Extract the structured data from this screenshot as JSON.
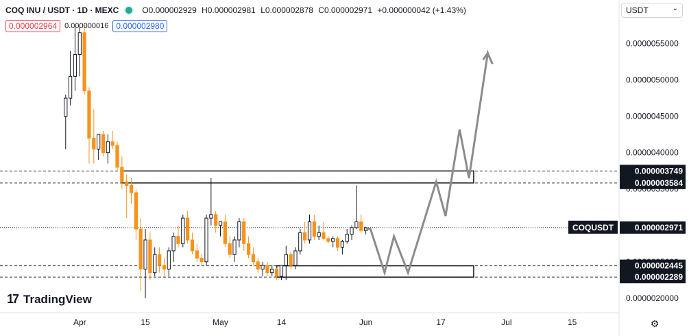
{
  "legend": {
    "title": "COQ INU / USDT · 1D · MEXC",
    "open": "O0.000002929",
    "high": "H0.000002981",
    "low": "L0.000002878",
    "close": "C0.000002971",
    "change": "+0.000000042 (+1.43%)"
  },
  "order": {
    "sell_price": "0.000002964",
    "spread": "0.000000016",
    "buy_price": "0.000002980"
  },
  "currency": "USDT",
  "brand": "TradingView",
  "icons": {
    "status": "green-dot-icon",
    "dropdown": "chevron-down-icon",
    "settings": "gear-icon",
    "logo": "tradingview-logo-icon"
  },
  "colors": {
    "up": "#131722",
    "down": "#f7931a",
    "projection": "#8c8c8c",
    "level_line": "#333333"
  },
  "chart_data": {
    "type": "candlestick",
    "symbol_tag": "COQUSDT",
    "last_price": "0.000002971",
    "ylim": [
      1.8e-06,
      6.1e-06
    ],
    "y_ticks": [
      "0.0000020000",
      "0.0000025000",
      "0.0000030000",
      "0.0000035000",
      "0.0000040000",
      "0.0000045000",
      "0.0000050000",
      "0.0000055000"
    ],
    "y_tick_values": [
      2e-06,
      2.5e-06,
      3e-06,
      3.5e-06,
      4e-06,
      4.5e-06,
      5e-06,
      5.5e-06
    ],
    "x_ticks": [
      {
        "label": "Apr",
        "date": "2024-04-01"
      },
      {
        "label": "15",
        "date": "2024-04-15"
      },
      {
        "label": "May",
        "date": "2024-05-01"
      },
      {
        "label": "14",
        "date": "2024-05-14"
      },
      {
        "label": "Jun",
        "date": "2024-06-01"
      },
      {
        "label": "17",
        "date": "2024-06-17"
      },
      {
        "label": "Jul",
        "date": "2024-07-01"
      },
      {
        "label": "15",
        "date": "2024-07-15"
      }
    ],
    "x_range": [
      "2024-03-15",
      "2024-07-25"
    ],
    "candles": [
      {
        "date": "2024-03-29",
        "o": 4.5e-06,
        "h": 4.8e-06,
        "l": 4.05e-06,
        "c": 4.75e-06
      },
      {
        "date": "2024-03-30",
        "o": 4.75e-06,
        "h": 5.4e-06,
        "l": 4.65e-06,
        "c": 5.05e-06
      },
      {
        "date": "2024-03-31",
        "o": 5.05e-06,
        "h": 5.72e-06,
        "l": 4.85e-06,
        "c": 5.35e-06
      },
      {
        "date": "2024-04-01",
        "o": 5.35e-06,
        "h": 5.73e-06,
        "l": 5.05e-06,
        "c": 5.65e-06
      },
      {
        "date": "2024-04-02",
        "o": 5.65e-06,
        "h": 5.75e-06,
        "l": 4.8e-06,
        "c": 4.85e-06
      },
      {
        "date": "2024-04-03",
        "o": 4.85e-06,
        "h": 4.9e-06,
        "l": 3.85e-06,
        "c": 4.2e-06
      },
      {
        "date": "2024-04-04",
        "o": 4.2e-06,
        "h": 4.6e-06,
        "l": 3.85e-06,
        "c": 4.05e-06
      },
      {
        "date": "2024-04-05",
        "o": 4.05e-06,
        "h": 4.25e-06,
        "l": 3.9e-06,
        "c": 4.25e-06
      },
      {
        "date": "2024-04-06",
        "o": 4.25e-06,
        "h": 4.3e-06,
        "l": 3.95e-06,
        "c": 4e-06
      },
      {
        "date": "2024-04-07",
        "o": 4e-06,
        "h": 4.25e-06,
        "l": 3.85e-06,
        "c": 4.15e-06
      },
      {
        "date": "2024-04-08",
        "o": 4.15e-06,
        "h": 4.3e-06,
        "l": 4.05e-06,
        "c": 4.1e-06
      },
      {
        "date": "2024-04-09",
        "o": 4.1e-06,
        "h": 4.15e-06,
        "l": 3.75e-06,
        "c": 3.8e-06
      },
      {
        "date": "2024-04-10",
        "o": 3.8e-06,
        "h": 3.95e-06,
        "l": 3.5e-06,
        "c": 3.6e-06
      },
      {
        "date": "2024-04-11",
        "o": 3.6e-06,
        "h": 3.7e-06,
        "l": 3.1e-06,
        "c": 3.55e-06
      },
      {
        "date": "2024-04-12",
        "o": 3.55e-06,
        "h": 3.65e-06,
        "l": 3.3e-06,
        "c": 3.45e-06
      },
      {
        "date": "2024-04-13",
        "o": 3.45e-06,
        "h": 3.5e-06,
        "l": 2.8e-06,
        "c": 2.95e-06
      },
      {
        "date": "2024-04-14",
        "o": 2.95e-06,
        "h": 3.1e-06,
        "l": 2.1e-06,
        "c": 2.4e-06
      },
      {
        "date": "2024-04-15",
        "o": 2.4e-06,
        "h": 2.95e-06,
        "l": 2e-06,
        "c": 2.8e-06
      },
      {
        "date": "2024-04-16",
        "o": 2.8e-06,
        "h": 2.9e-06,
        "l": 2.25e-06,
        "c": 2.35e-06
      },
      {
        "date": "2024-04-17",
        "o": 2.35e-06,
        "h": 2.7e-06,
        "l": 2.3e-06,
        "c": 2.6e-06
      },
      {
        "date": "2024-04-18",
        "o": 2.6e-06,
        "h": 2.7e-06,
        "l": 2.35e-06,
        "c": 2.45e-06
      },
      {
        "date": "2024-04-19",
        "o": 2.45e-06,
        "h": 2.55e-06,
        "l": 2.3e-06,
        "c": 2.4e-06
      },
      {
        "date": "2024-04-20",
        "o": 2.4e-06,
        "h": 2.7e-06,
        "l": 2.3e-06,
        "c": 2.65e-06
      },
      {
        "date": "2024-04-21",
        "o": 2.65e-06,
        "h": 2.9e-06,
        "l": 2.5e-06,
        "c": 2.85e-06
      },
      {
        "date": "2024-04-22",
        "o": 2.85e-06,
        "h": 3e-06,
        "l": 2.7e-06,
        "c": 2.75e-06
      },
      {
        "date": "2024-04-23",
        "o": 2.75e-06,
        "h": 3.15e-06,
        "l": 2.7e-06,
        "c": 3.1e-06
      },
      {
        "date": "2024-04-24",
        "o": 3.1e-06,
        "h": 3.2e-06,
        "l": 2.75e-06,
        "c": 2.8e-06
      },
      {
        "date": "2024-04-25",
        "o": 2.8e-06,
        "h": 2.9e-06,
        "l": 2.6e-06,
        "c": 2.65e-06
      },
      {
        "date": "2024-04-26",
        "o": 2.65e-06,
        "h": 2.75e-06,
        "l": 2.5e-06,
        "c": 2.55e-06
      },
      {
        "date": "2024-04-27",
        "o": 2.55e-06,
        "h": 2.6e-06,
        "l": 2.45e-06,
        "c": 2.5e-06
      },
      {
        "date": "2024-04-28",
        "o": 2.5e-06,
        "h": 3.15e-06,
        "l": 2.45e-06,
        "c": 3.1e-06
      },
      {
        "date": "2024-04-29",
        "o": 3.1e-06,
        "h": 3.65e-06,
        "l": 3e-06,
        "c": 3.15e-06
      },
      {
        "date": "2024-04-30",
        "o": 3.15e-06,
        "h": 3.2e-06,
        "l": 2.9e-06,
        "c": 3e-06
      },
      {
        "date": "2024-05-01",
        "o": 3e-06,
        "h": 3.05e-06,
        "l": 2.85e-06,
        "c": 3.05e-06
      },
      {
        "date": "2024-05-02",
        "o": 3.05e-06,
        "h": 3.15e-06,
        "l": 2.7e-06,
        "c": 2.75e-06
      },
      {
        "date": "2024-05-03",
        "o": 2.75e-06,
        "h": 2.85e-06,
        "l": 2.55e-06,
        "c": 2.6e-06
      },
      {
        "date": "2024-05-04",
        "o": 2.6e-06,
        "h": 2.85e-06,
        "l": 2.5e-06,
        "c": 2.8e-06
      },
      {
        "date": "2024-05-05",
        "o": 2.8e-06,
        "h": 3.1e-06,
        "l": 2.7e-06,
        "c": 3.05e-06
      },
      {
        "date": "2024-05-06",
        "o": 3.05e-06,
        "h": 3.1e-06,
        "l": 2.65e-06,
        "c": 2.75e-06
      },
      {
        "date": "2024-05-07",
        "o": 2.75e-06,
        "h": 2.85e-06,
        "l": 2.55e-06,
        "c": 2.6e-06
      },
      {
        "date": "2024-05-08",
        "o": 2.6e-06,
        "h": 2.7e-06,
        "l": 2.45e-06,
        "c": 2.5e-06
      },
      {
        "date": "2024-05-09",
        "o": 2.5e-06,
        "h": 2.55e-06,
        "l": 2.35e-06,
        "c": 2.4e-06
      },
      {
        "date": "2024-05-10",
        "o": 2.4e-06,
        "h": 2.5e-06,
        "l": 2.3e-06,
        "c": 2.45e-06
      },
      {
        "date": "2024-05-11",
        "o": 2.45e-06,
        "h": 2.5e-06,
        "l": 2.3e-06,
        "c": 2.35e-06
      },
      {
        "date": "2024-05-12",
        "o": 2.35e-06,
        "h": 2.45e-06,
        "l": 2.3e-06,
        "c": 2.4e-06
      },
      {
        "date": "2024-05-13",
        "o": 2.4e-06,
        "h": 2.42e-06,
        "l": 2.25e-06,
        "c": 2.3e-06
      },
      {
        "date": "2024-05-14",
        "o": 2.3e-06,
        "h": 2.45e-06,
        "l": 2.25e-06,
        "c": 2.45e-06
      },
      {
        "date": "2024-05-15",
        "o": 2.45e-06,
        "h": 2.72e-06,
        "l": 2.25e-06,
        "c": 2.6e-06
      },
      {
        "date": "2024-05-16",
        "o": 2.6e-06,
        "h": 2.65e-06,
        "l": 2.4e-06,
        "c": 2.45e-06
      },
      {
        "date": "2024-05-17",
        "o": 2.45e-06,
        "h": 2.7e-06,
        "l": 2.4e-06,
        "c": 2.65e-06
      },
      {
        "date": "2024-05-18",
        "o": 2.65e-06,
        "h": 2.95e-06,
        "l": 2.6e-06,
        "c": 2.9e-06
      },
      {
        "date": "2024-05-19",
        "o": 2.9e-06,
        "h": 3.05e-06,
        "l": 2.75e-06,
        "c": 2.8e-06
      },
      {
        "date": "2024-05-20",
        "o": 2.8e-06,
        "h": 3.15e-06,
        "l": 2.75e-06,
        "c": 3.05e-06
      },
      {
        "date": "2024-05-21",
        "o": 3.05e-06,
        "h": 3.15e-06,
        "l": 2.8e-06,
        "c": 2.85e-06
      },
      {
        "date": "2024-05-22",
        "o": 2.85e-06,
        "h": 3e-06,
        "l": 2.8e-06,
        "c": 2.9e-06
      },
      {
        "date": "2024-05-23",
        "o": 2.9e-06,
        "h": 3.05e-06,
        "l": 2.8e-06,
        "c": 2.82e-06
      },
      {
        "date": "2024-05-24",
        "o": 2.82e-06,
        "h": 2.85e-06,
        "l": 2.75e-06,
        "c": 2.78e-06
      },
      {
        "date": "2024-05-25",
        "o": 2.78e-06,
        "h": 2.85e-06,
        "l": 2.7e-06,
        "c": 2.82e-06
      },
      {
        "date": "2024-05-26",
        "o": 2.82e-06,
        "h": 2.85e-06,
        "l": 2.65e-06,
        "c": 2.7e-06
      },
      {
        "date": "2024-05-27",
        "o": 2.7e-06,
        "h": 2.8e-06,
        "l": 2.6e-06,
        "c": 2.78e-06
      },
      {
        "date": "2024-05-28",
        "o": 2.78e-06,
        "h": 2.95e-06,
        "l": 2.75e-06,
        "c": 2.88e-06
      },
      {
        "date": "2024-05-29",
        "o": 2.88e-06,
        "h": 3e-06,
        "l": 2.8e-06,
        "c": 2.97e-06
      },
      {
        "date": "2024-05-30",
        "o": 2.97e-06,
        "h": 3.55e-06,
        "l": 2.95e-06,
        "c": 3.05e-06
      },
      {
        "date": "2024-05-31",
        "o": 3.05e-06,
        "h": 3.15e-06,
        "l": 2.9e-06,
        "c": 2.93e-06
      },
      {
        "date": "2024-06-01",
        "o": 2.929e-06,
        "h": 2.981e-06,
        "l": 2.878e-06,
        "c": 2.971e-06
      }
    ],
    "resistance_zone": [
      3.584e-06,
      3.749e-06
    ],
    "support_zone": [
      2.289e-06,
      2.445e-06
    ],
    "level_labels": [
      "0.000003749",
      "0.000003584",
      "0.000002445",
      "0.000002289"
    ],
    "projection_path": [
      {
        "date": "2024-06-01",
        "price": 2.96e-06
      },
      {
        "date": "2024-06-02",
        "price": 2.95e-06
      },
      {
        "date": "2024-06-05",
        "price": 2.35e-06
      },
      {
        "date": "2024-06-07",
        "price": 2.85e-06
      },
      {
        "date": "2024-06-10",
        "price": 2.35e-06
      },
      {
        "date": "2024-06-16",
        "price": 3.6e-06
      },
      {
        "date": "2024-06-18",
        "price": 3.13e-06
      },
      {
        "date": "2024-06-21",
        "price": 4.32e-06
      },
      {
        "date": "2024-06-23",
        "price": 3.65e-06
      },
      {
        "date": "2024-06-27",
        "price": 5.37e-06
      },
      {
        "date": "2024-06-28",
        "price": 5.22e-06
      }
    ],
    "projection_arrowhead": {
      "date": "2024-06-26",
      "price": 5.28e-06
    }
  }
}
